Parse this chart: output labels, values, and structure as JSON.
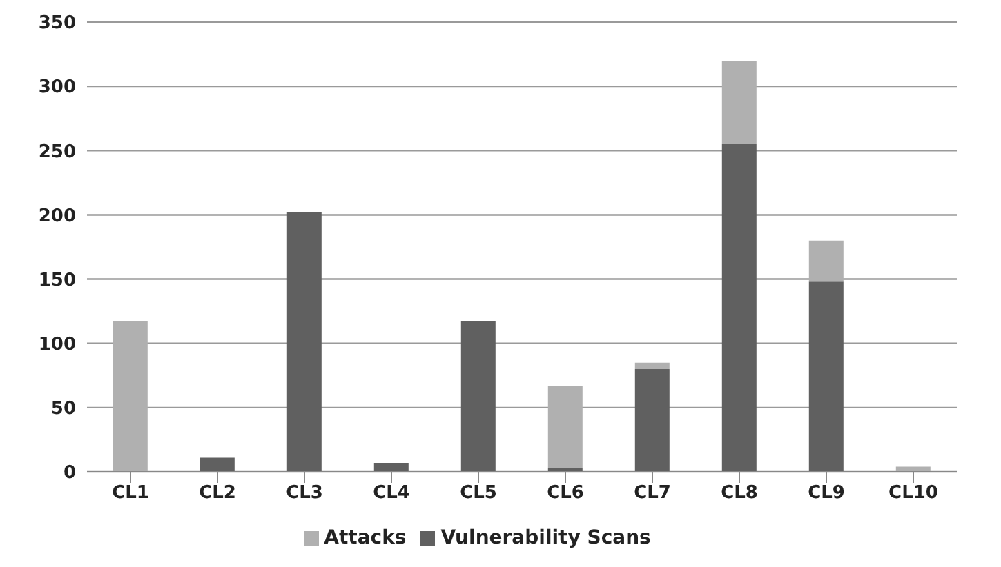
{
  "chart_data": {
    "type": "bar",
    "stacked": true,
    "categories": [
      "CL1",
      "CL2",
      "CL3",
      "CL4",
      "CL5",
      "CL6",
      "CL7",
      "CL8",
      "CL9",
      "CL10"
    ],
    "series": [
      {
        "name": "Vulnerability Scans",
        "color": "#606060",
        "values": [
          0,
          11,
          202,
          7,
          117,
          3,
          80,
          255,
          148,
          0
        ]
      },
      {
        "name": "Attacks",
        "color": "#b0b0b0",
        "values": [
          117,
          0,
          0,
          0,
          0,
          64,
          5,
          65,
          32,
          4
        ]
      }
    ],
    "ylim": [
      0,
      350
    ],
    "yticks": [
      0,
      50,
      100,
      150,
      200,
      250,
      300,
      350
    ],
    "grid": "y",
    "legend": "bottom"
  }
}
